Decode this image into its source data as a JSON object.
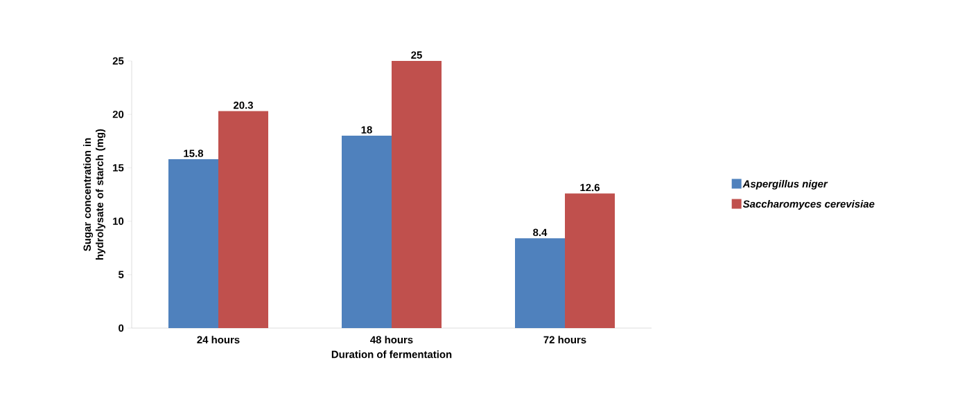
{
  "chart_data": {
    "type": "bar",
    "xlabel": "Duration of fermentation",
    "ylabel": "Sugar concentration in hydrolysate of starch (mg)",
    "categories": [
      "24 hours",
      "48 hours",
      "72 hours"
    ],
    "series": [
      {
        "name": "Aspergillus niger",
        "color": "#4f81bd",
        "values": [
          15.8,
          18,
          8.4
        ]
      },
      {
        "name": "Saccharomyces cerevisiae",
        "color": "#c0504d",
        "values": [
          20.3,
          25,
          12.6
        ]
      }
    ],
    "ylim": [
      0,
      25
    ],
    "yticks": [
      0,
      5,
      10,
      15,
      20,
      25
    ],
    "data_labels": true,
    "legend": "right",
    "grid": false
  }
}
